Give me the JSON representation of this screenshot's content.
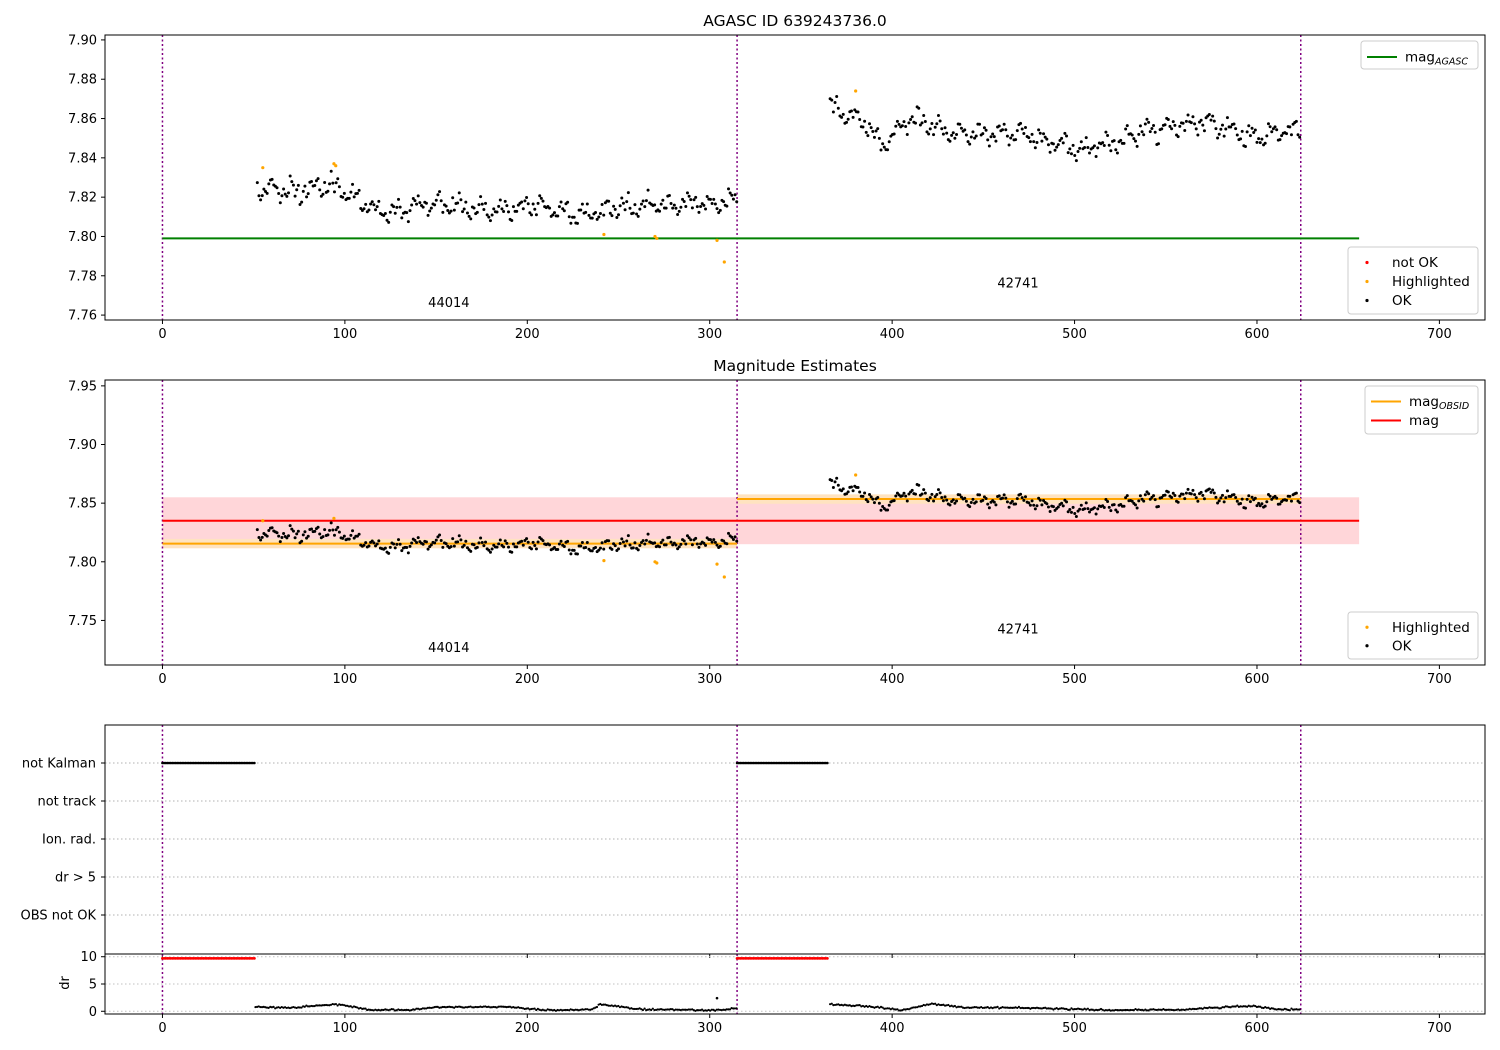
{
  "chart_data": [
    {
      "type": "scatter",
      "title": "AGASC ID 639243736.0",
      "xlim": [
        -31.5,
        725
      ],
      "ylim": [
        7.7575,
        7.9025
      ],
      "xticks": [
        0,
        100,
        200,
        300,
        400,
        500,
        600,
        700
      ],
      "yticks": [
        7.76,
        7.78,
        7.8,
        7.82,
        7.84,
        7.86,
        7.88,
        7.9
      ],
      "vlines": [
        0,
        315,
        624
      ],
      "hlines": [
        {
          "name": "mag_AGASC",
          "y": 7.799,
          "x": [
            0,
            656
          ],
          "color": "#008000"
        }
      ],
      "obsid_labels": [
        {
          "text": "44014",
          "x": 157,
          "y": 7.764
        },
        {
          "text": "42741",
          "x": 469,
          "y": 7.774
        }
      ],
      "legends": [
        {
          "placement": "upper right",
          "entries": [
            {
              "label": "mag",
              "sub": "AGASC",
              "kind": "line",
              "color": "#008000"
            }
          ]
        },
        {
          "placement": "lower right",
          "entries": [
            {
              "label": "not OK",
              "kind": "dot",
              "color": "#ff0000"
            },
            {
              "label": "Highlighted",
              "kind": "dot",
              "color": "#ffa500"
            },
            {
              "label": "OK",
              "kind": "dot",
              "color": "#000000"
            }
          ]
        }
      ],
      "series": [
        {
          "name": "OK",
          "color": "#000000",
          "segments": [
            {
              "x": [
                52,
                315
              ],
              "anchors": [
                [
                  52,
                  7.824
                ],
                [
                  75,
                  7.823
                ],
                [
                  95,
                  7.826
                ],
                [
                  120,
                  7.812
                ],
                [
                  150,
                  7.817
                ],
                [
                  180,
                  7.813
                ],
                [
                  205,
                  7.816
                ],
                [
                  225,
                  7.811
                ],
                [
                  260,
                  7.815
                ],
                [
                  290,
                  7.817
                ],
                [
                  315,
                  7.818
                ]
              ]
            },
            {
              "x": [
                366,
                624
              ],
              "anchors": [
                [
                  366,
                  7.866
                ],
                [
                  385,
                  7.858
                ],
                [
                  395,
                  7.847
                ],
                [
                  410,
                  7.86
                ],
                [
                  440,
                  7.851
                ],
                [
                  470,
                  7.853
                ],
                [
                  505,
                  7.843
                ],
                [
                  540,
                  7.854
                ],
                [
                  570,
                  7.859
                ],
                [
                  595,
                  7.851
                ],
                [
                  624,
                  7.854
                ]
              ]
            }
          ]
        },
        {
          "name": "Highlighted",
          "color": "#ffa500",
          "points": [
            [
              55,
              7.835
            ],
            [
              94,
              7.837
            ],
            [
              95,
              7.836
            ],
            [
              242,
              7.801
            ],
            [
              270,
              7.8
            ],
            [
              271,
              7.799
            ],
            [
              304,
              7.798
            ],
            [
              308,
              7.787
            ],
            [
              380,
              7.874
            ]
          ]
        }
      ]
    },
    {
      "type": "scatter",
      "title": "Magnitude Estimates",
      "xlim": [
        -31.5,
        725
      ],
      "ylim": [
        7.712,
        7.955
      ],
      "xticks": [
        0,
        100,
        200,
        300,
        400,
        500,
        600,
        700
      ],
      "yticks": [
        7.75,
        7.8,
        7.85,
        7.9,
        7.95
      ],
      "vlines": [
        0,
        315,
        624
      ],
      "bands": [
        {
          "name": "mag",
          "x": [
            0,
            656
          ],
          "y": [
            7.815,
            7.855
          ],
          "color": "#ffd6d9"
        },
        {
          "name": "mag_OBSID 44014",
          "x": [
            0,
            315
          ],
          "y": [
            7.8115,
            7.8195
          ],
          "color": "#ffe3c0"
        },
        {
          "name": "mag_OBSID 42741",
          "x": [
            315,
            624
          ],
          "y": [
            7.8495,
            7.8575
          ],
          "color": "#ffe3c0"
        }
      ],
      "hlines": [
        {
          "name": "mag",
          "y": 7.835,
          "x": [
            0,
            656
          ],
          "color": "#ff0000"
        },
        {
          "name": "mag_OBSID 44014",
          "y": 7.8155,
          "x": [
            0,
            315
          ],
          "color": "#ffa500"
        },
        {
          "name": "mag_OBSID 42741",
          "y": 7.8535,
          "x": [
            315,
            624
          ],
          "color": "#ffa500"
        }
      ],
      "obsid_labels": [
        {
          "text": "44014",
          "x": 157,
          "y": 7.723
        },
        {
          "text": "42741",
          "x": 469,
          "y": 7.739
        }
      ],
      "legends": [
        {
          "placement": "upper right",
          "entries": [
            {
              "label": "mag",
              "sub": "OBSID",
              "kind": "line",
              "color": "#ffa500"
            },
            {
              "label": "mag",
              "kind": "line",
              "color": "#ff0000"
            }
          ]
        },
        {
          "placement": "lower right",
          "entries": [
            {
              "label": "Highlighted",
              "kind": "dot",
              "color": "#ffa500"
            },
            {
              "label": "OK",
              "kind": "dot",
              "color": "#000000"
            }
          ]
        }
      ],
      "series": [
        {
          "name": "OK",
          "color": "#000000",
          "segments": [
            {
              "x": [
                52,
                315
              ],
              "anchors": [
                [
                  52,
                  7.824
                ],
                [
                  75,
                  7.823
                ],
                [
                  95,
                  7.826
                ],
                [
                  120,
                  7.812
                ],
                [
                  150,
                  7.817
                ],
                [
                  180,
                  7.813
                ],
                [
                  205,
                  7.816
                ],
                [
                  225,
                  7.811
                ],
                [
                  260,
                  7.815
                ],
                [
                  290,
                  7.817
                ],
                [
                  315,
                  7.818
                ]
              ]
            },
            {
              "x": [
                366,
                624
              ],
              "anchors": [
                [
                  366,
                  7.866
                ],
                [
                  385,
                  7.858
                ],
                [
                  395,
                  7.847
                ],
                [
                  410,
                  7.86
                ],
                [
                  440,
                  7.851
                ],
                [
                  470,
                  7.853
                ],
                [
                  505,
                  7.843
                ],
                [
                  540,
                  7.854
                ],
                [
                  570,
                  7.859
                ],
                [
                  595,
                  7.851
                ],
                [
                  624,
                  7.854
                ]
              ]
            }
          ]
        },
        {
          "name": "Highlighted",
          "color": "#ffa500",
          "points": [
            [
              55,
              7.835
            ],
            [
              94,
              7.837
            ],
            [
              242,
              7.801
            ],
            [
              270,
              7.8
            ],
            [
              271,
              7.799
            ],
            [
              304,
              7.798
            ],
            [
              308,
              7.787
            ],
            [
              380,
              7.874
            ]
          ]
        }
      ]
    },
    {
      "type": "scatter",
      "title": "",
      "xlim": [
        -31.5,
        725
      ],
      "categories": [
        "not Kalman",
        "not track",
        "Ion. rad.",
        "dr > 5",
        "OBS not OK"
      ],
      "vlines": [
        0,
        315,
        624
      ],
      "flag_ranges": [
        {
          "category": "not Kalman",
          "x": [
            [
              0,
              51
            ],
            [
              315,
              365
            ]
          ],
          "color": "#000000"
        }
      ]
    },
    {
      "type": "scatter",
      "title": "",
      "xlim": [
        -31.5,
        725
      ],
      "ylim": [
        -0.5,
        10.5
      ],
      "yticks": [
        0,
        5,
        10
      ],
      "xticks": [
        0,
        100,
        200,
        300,
        400,
        500,
        600,
        700
      ],
      "ylabel": "dr",
      "vlines": [
        0,
        315,
        624
      ],
      "series": [
        {
          "name": "dr clipped",
          "color": "#ff0000",
          "ranges": [
            [
              0,
              51,
              9.7
            ],
            [
              315,
              365,
              9.7
            ]
          ]
        },
        {
          "name": "dr",
          "color": "#000000",
          "segments": [
            {
              "x": [
                51,
                315
              ],
              "anchors": [
                [
                  51,
                  0.8
                ],
                [
                  70,
                  0.6
                ],
                [
                  95,
                  1.3
                ],
                [
                  115,
                  0.2
                ],
                [
                  135,
                  0.3
                ],
                [
                  150,
                  0.7
                ],
                [
                  190,
                  0.8
                ],
                [
                  210,
                  0.2
                ],
                [
                  235,
                  0.3
                ],
                [
                  240,
                  1.3
                ],
                [
                  260,
                  0.4
                ],
                [
                  280,
                  0.3
                ],
                [
                  300,
                  0.2
                ],
                [
                  315,
                  0.5
                ]
              ]
            },
            {
              "x": [
                366,
                624
              ],
              "anchors": [
                [
                  366,
                  1.3
                ],
                [
                  390,
                  0.8
                ],
                [
                  405,
                  0.2
                ],
                [
                  422,
                  1.4
                ],
                [
                  440,
                  0.7
                ],
                [
                  480,
                  0.6
                ],
                [
                  520,
                  0.2
                ],
                [
                  560,
                  0.3
                ],
                [
                  585,
                  0.8
                ],
                [
                  598,
                  1.0
                ],
                [
                  610,
                  0.4
                ],
                [
                  624,
                  0.3
                ]
              ]
            }
          ]
        },
        {
          "name": "dr outlier",
          "color": "#000000",
          "points": [
            [
              304,
              2.4
            ]
          ]
        }
      ]
    }
  ]
}
